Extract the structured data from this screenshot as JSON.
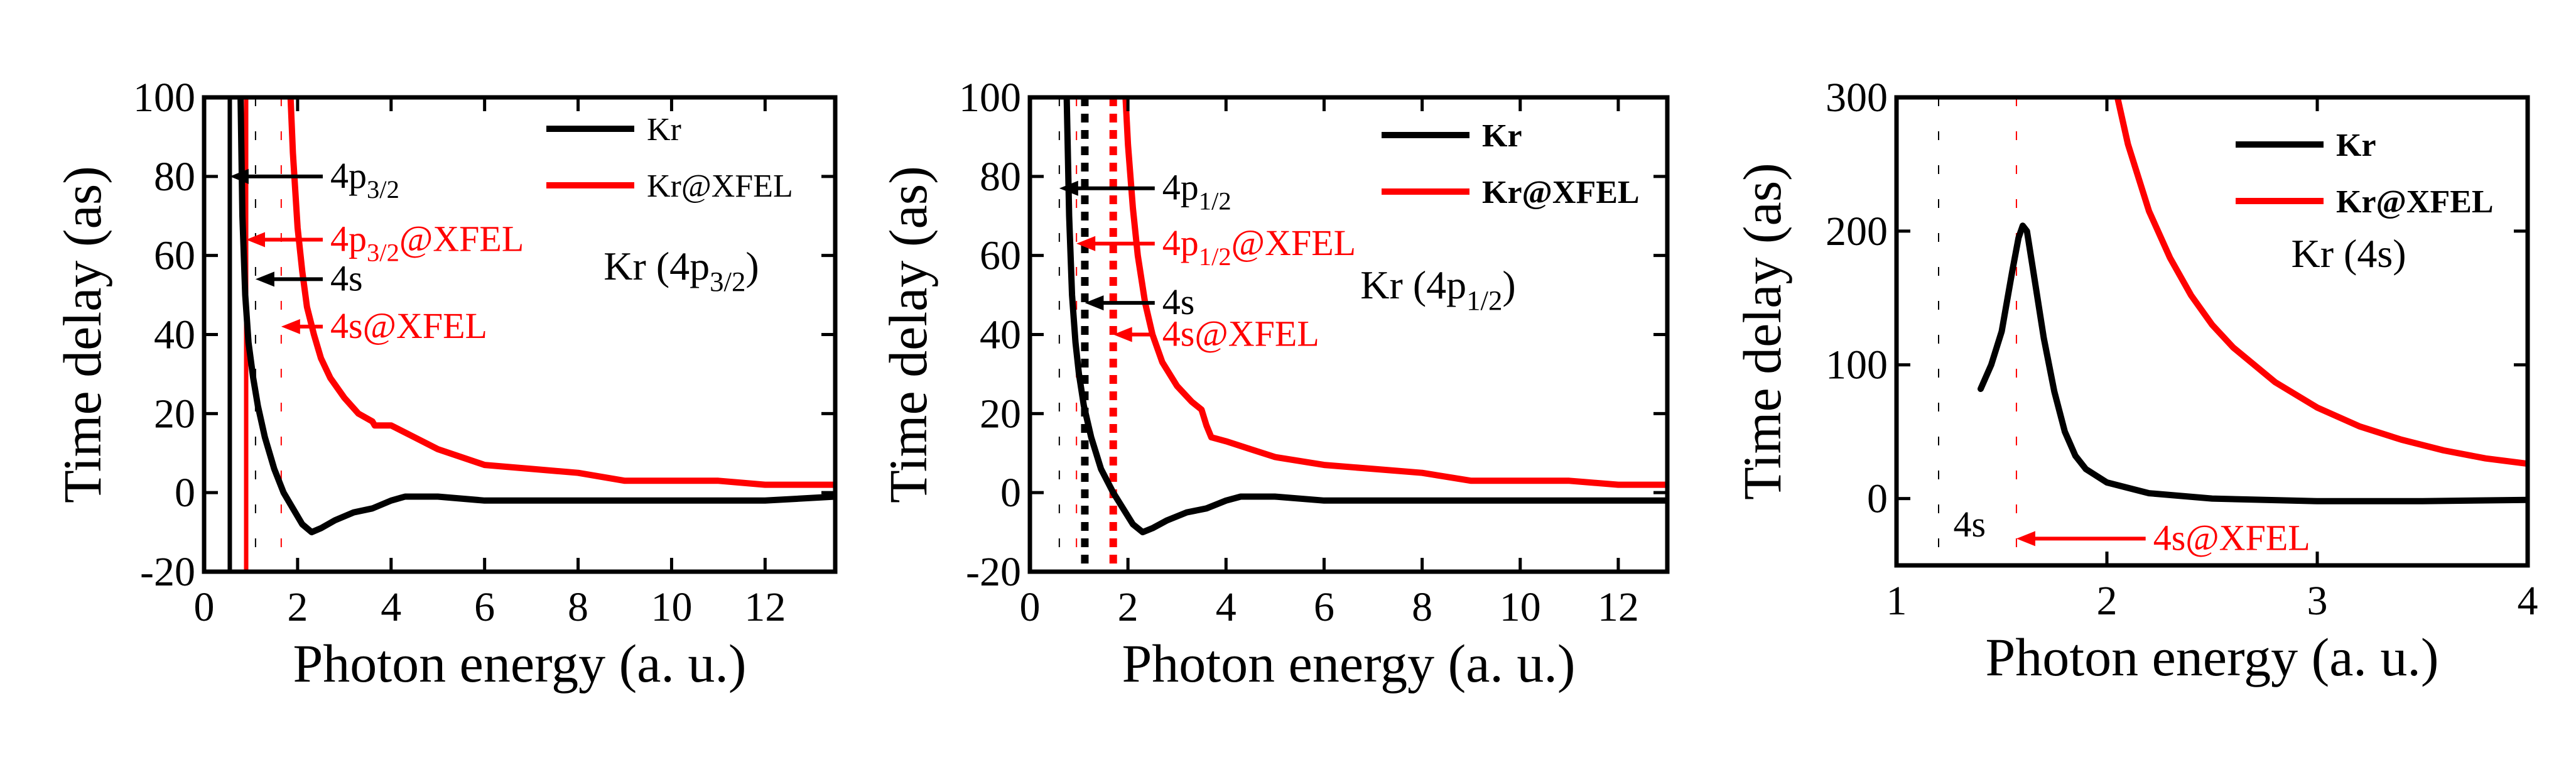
{
  "colors": {
    "kr": "#000000",
    "xfel": "#ff0000",
    "axis": "#000000",
    "background": "#ffffff"
  },
  "chart_data": [
    {
      "type": "line",
      "title": "Kr (4p3/2)",
      "title_main": "Kr (4p",
      "title_sub": "3/2",
      "title_end": ")",
      "xlabel": "Photon energy (a. u.)",
      "ylabel": "Time delay (as)",
      "xlim": [
        0,
        13.5
      ],
      "ylim": [
        -20,
        100
      ],
      "xticks": [
        0,
        2,
        4,
        6,
        8,
        10,
        12
      ],
      "yticks": [
        -20,
        0,
        20,
        40,
        60,
        80,
        100
      ],
      "legend": {
        "placement": "top-right",
        "bold": false,
        "entries": [
          "Kr",
          "Kr@XFEL"
        ]
      },
      "series": [
        {
          "name": "Kr",
          "color": "#000000",
          "x": [
            0.78,
            0.82,
            0.88,
            0.95,
            1.05,
            1.15,
            1.3,
            1.5,
            1.7,
            1.9,
            2.1,
            2.3,
            2.5,
            2.8,
            3.2,
            3.6,
            4.0,
            4.3,
            4.6,
            5.0,
            6,
            7,
            8,
            9,
            10,
            11,
            12,
            13.5
          ],
          "y": [
            100,
            70,
            50,
            38,
            29,
            22,
            14,
            6,
            0,
            -4,
            -8,
            -10,
            -9,
            -7,
            -5,
            -4,
            -2,
            -1,
            -1,
            -1,
            -2,
            -2,
            -2,
            -2,
            -2,
            -2,
            -2,
            -1
          ]
        },
        {
          "name": "Kr@XFEL",
          "color": "#ff0000",
          "x": [
            1.85,
            1.9,
            2.0,
            2.1,
            2.2,
            2.35,
            2.5,
            2.7,
            3.0,
            3.3,
            3.6,
            3.65,
            4.0,
            4.5,
            5.0,
            6,
            7,
            8,
            9,
            10,
            11,
            12,
            13.5
          ],
          "y": [
            100,
            86,
            67,
            56,
            47,
            40,
            34,
            29,
            24,
            20,
            18,
            17,
            17,
            14,
            11,
            7,
            6,
            5,
            3,
            3,
            3,
            2,
            2
          ]
        }
      ],
      "threshold_lines": [
        {
          "x": 0.55,
          "color": "#000000",
          "style": "solid"
        },
        {
          "x": 0.9,
          "color": "#ff0000",
          "style": "solid"
        },
        {
          "x": 1.1,
          "color": "#000000",
          "style": "dashed"
        },
        {
          "x": 1.65,
          "color": "#ff0000",
          "style": "dashed"
        }
      ],
      "annotations": [
        {
          "main": "4p",
          "sub": "3/2",
          "suffix": "",
          "color": "#000000",
          "tip": [
            0.55,
            80
          ],
          "text_at": [
            2.7,
            80
          ]
        },
        {
          "main": "4p",
          "sub": "3/2",
          "suffix": "@XFEL",
          "color": "#ff0000",
          "tip": [
            0.9,
            64
          ],
          "text_at": [
            2.7,
            64
          ]
        },
        {
          "main": "4s",
          "sub": "",
          "suffix": "",
          "color": "#000000",
          "tip": [
            1.1,
            54
          ],
          "text_at": [
            2.7,
            54
          ]
        },
        {
          "main": "4s",
          "sub": "",
          "suffix": "@XFEL",
          "color": "#ff0000",
          "tip": [
            1.65,
            42
          ],
          "text_at": [
            2.7,
            42
          ]
        }
      ]
    },
    {
      "type": "line",
      "title": "Kr (4p1/2)",
      "title_main": "Kr (4p",
      "title_sub": "1/2",
      "title_end": ")",
      "xlabel": "Photon energy (a. u.)",
      "ylabel": "Time delay (as)",
      "xlim": [
        0,
        13
      ],
      "ylim": [
        -20,
        100
      ],
      "xticks": [
        0,
        2,
        4,
        6,
        8,
        10,
        12
      ],
      "yticks": [
        -20,
        0,
        20,
        40,
        60,
        80,
        100
      ],
      "legend": {
        "placement": "top-right",
        "bold": true,
        "entries": [
          "Kr",
          "Kr@XFEL"
        ]
      },
      "series": [
        {
          "name": "Kr",
          "color": "#000000",
          "x": [
            0.75,
            0.8,
            0.86,
            0.93,
            1.0,
            1.1,
            1.25,
            1.45,
            1.7,
            1.9,
            2.1,
            2.3,
            2.5,
            2.8,
            3.2,
            3.6,
            4.0,
            4.3,
            4.6,
            5.0,
            6,
            7,
            8,
            9,
            10,
            11,
            12,
            13
          ],
          "y": [
            100,
            70,
            50,
            38,
            30,
            22,
            14,
            6,
            0,
            -4,
            -8,
            -10,
            -9,
            -7,
            -5,
            -4,
            -2,
            -1,
            -1,
            -1,
            -2,
            -2,
            -2,
            -2,
            -2,
            -2,
            -2,
            -2
          ]
        },
        {
          "name": "Kr@XFEL",
          "color": "#ff0000",
          "x": [
            1.95,
            2.0,
            2.1,
            2.2,
            2.35,
            2.5,
            2.7,
            3.0,
            3.3,
            3.5,
            3.6,
            3.7,
            4.0,
            4.5,
            5.0,
            6,
            7,
            8,
            9,
            10,
            11,
            12,
            13
          ],
          "y": [
            100,
            88,
            72,
            60,
            48,
            40,
            33,
            27,
            23,
            21,
            17,
            14,
            13,
            11,
            9,
            7,
            6,
            5,
            3,
            3,
            3,
            2,
            2
          ]
        }
      ],
      "threshold_lines": [
        {
          "x": 0.6,
          "color": "#000000",
          "style": "dashed"
        },
        {
          "x": 0.95,
          "color": "#ff0000",
          "style": "dashed"
        },
        {
          "x": 1.12,
          "color": "#000000",
          "style": "dotted"
        },
        {
          "x": 1.7,
          "color": "#ff0000",
          "style": "dotted"
        }
      ],
      "annotations": [
        {
          "main": "4p",
          "sub": "1/2",
          "suffix": "",
          "color": "#000000",
          "tip": [
            0.6,
            77
          ],
          "text_at": [
            2.7,
            77
          ]
        },
        {
          "main": "4p",
          "sub": "1/2",
          "suffix": "@XFEL",
          "color": "#ff0000",
          "tip": [
            0.95,
            63
          ],
          "text_at": [
            2.7,
            63
          ]
        },
        {
          "main": "4s",
          "sub": "",
          "suffix": "",
          "color": "#000000",
          "tip": [
            1.12,
            48
          ],
          "text_at": [
            2.7,
            48
          ]
        },
        {
          "main": "4s",
          "sub": "",
          "suffix": "@XFEL",
          "color": "#ff0000",
          "tip": [
            1.7,
            40
          ],
          "text_at": [
            2.7,
            40
          ]
        }
      ]
    },
    {
      "type": "line",
      "title": "Kr (4s)",
      "title_main": "Kr (4s)",
      "title_sub": "",
      "title_end": "",
      "xlabel": "Photon energy (a. u.)",
      "ylabel": "Time delay (as)",
      "xlim": [
        1,
        4
      ],
      "ylim": [
        -50,
        300
      ],
      "xticks": [
        1,
        2,
        3,
        4
      ],
      "yticks": [
        0,
        100,
        200,
        300
      ],
      "legend": {
        "placement": "top-right",
        "bold": true,
        "entries": [
          "Kr",
          "Kr@XFEL"
        ]
      },
      "series": [
        {
          "name": "Kr",
          "color": "#000000",
          "x": [
            1.4,
            1.45,
            1.5,
            1.55,
            1.58,
            1.6,
            1.62,
            1.65,
            1.7,
            1.75,
            1.8,
            1.85,
            1.9,
            2.0,
            2.2,
            2.5,
            3.0,
            3.5,
            4.0
          ],
          "y": [
            82,
            100,
            125,
            170,
            195,
            204,
            200,
            170,
            120,
            80,
            50,
            32,
            22,
            12,
            4,
            0,
            -2,
            -2,
            -1
          ]
        },
        {
          "name": "Kr@XFEL",
          "color": "#ff0000",
          "x": [
            2.05,
            2.1,
            2.2,
            2.3,
            2.4,
            2.5,
            2.6,
            2.8,
            3.0,
            3.2,
            3.4,
            3.6,
            3.8,
            4.0
          ],
          "y": [
            300,
            265,
            215,
            180,
            152,
            130,
            113,
            87,
            68,
            54,
            44,
            36,
            30,
            26
          ]
        }
      ],
      "threshold_lines": [
        {
          "x": 1.2,
          "color": "#000000",
          "style": "dashed"
        },
        {
          "x": 1.57,
          "color": "#ff0000",
          "style": "dashed"
        }
      ],
      "annotations": [
        {
          "main": "4s",
          "sub": "",
          "suffix": "",
          "color": "#000000",
          "tip": null,
          "text_at": [
            1.27,
            -20
          ]
        },
        {
          "main": "4s",
          "sub": "",
          "suffix": "@XFEL",
          "color": "#ff0000",
          "tip": [
            1.57,
            -30
          ],
          "text_at": [
            2.22,
            -30
          ]
        }
      ]
    }
  ]
}
